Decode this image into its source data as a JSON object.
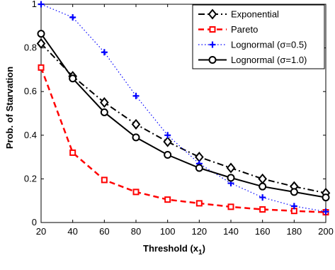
{
  "chart_data": {
    "type": "line",
    "title": "",
    "xlabel": "Threshold (x",
    "xlabel_sub": "1",
    "xlabel_close": ")",
    "ylabel": "Prob. of Starvation",
    "x": [
      20,
      40,
      60,
      80,
      100,
      120,
      140,
      160,
      180,
      200
    ],
    "xlim": [
      20,
      200
    ],
    "ylim": [
      0,
      1
    ],
    "xticks": [
      "20",
      "40",
      "60",
      "80",
      "100",
      "120",
      "140",
      "160",
      "180",
      "200"
    ],
    "yticks": [
      "0",
      "0.2",
      "0.4",
      "0.6",
      "0.8",
      "1"
    ],
    "grid": false,
    "legend_position": "top-right",
    "series": [
      {
        "name": "Exponential",
        "color": "#000000",
        "dash": "dashdot",
        "marker": "diamond",
        "values": [
          0.82,
          0.67,
          0.55,
          0.45,
          0.37,
          0.3,
          0.25,
          0.2,
          0.165,
          0.135
        ]
      },
      {
        "name": "Pareto",
        "color": "#ff0000",
        "dash": "dash",
        "marker": "square",
        "values": [
          0.71,
          0.32,
          0.195,
          0.14,
          0.105,
          0.088,
          0.072,
          0.06,
          0.053,
          0.047
        ]
      },
      {
        "name": "Lognormal (σ=0.5)",
        "color": "#0000ff",
        "dash": "dot",
        "marker": "plus",
        "values": [
          1.0,
          0.94,
          0.78,
          0.58,
          0.4,
          0.27,
          0.18,
          0.115,
          0.075,
          0.05
        ]
      },
      {
        "name": "Lognormal (σ=1.0)",
        "color": "#000000",
        "dash": "solid",
        "marker": "circle",
        "values": [
          0.865,
          0.66,
          0.505,
          0.39,
          0.31,
          0.25,
          0.205,
          0.165,
          0.14,
          0.115
        ]
      }
    ]
  }
}
